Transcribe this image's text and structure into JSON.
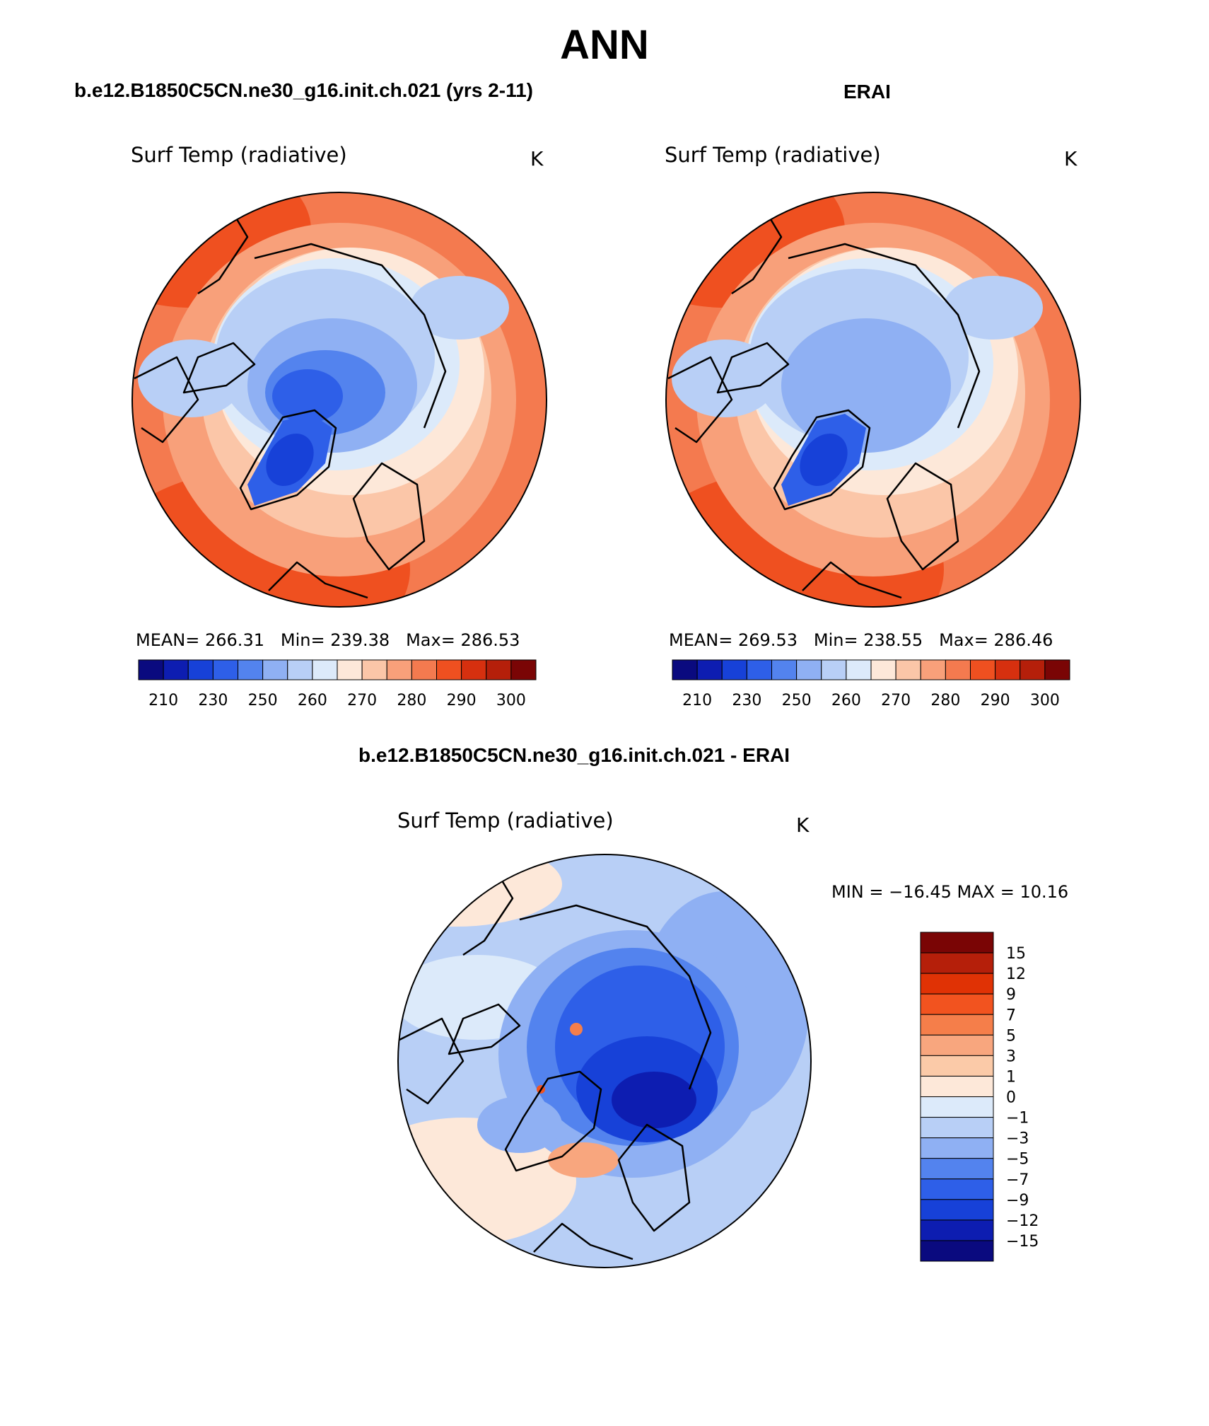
{
  "title": "ANN",
  "panels": [
    {
      "case_title": "b.e12.B1850C5CN.ne30_g16.init.ch.021 (yrs 2-11)",
      "variable": "Surf Temp (radiative)",
      "units": "K",
      "stats": {
        "mean_label": "MEAN=",
        "mean": "266.31",
        "min_label": "Min=",
        "min": "239.38",
        "max_label": "Max=",
        "max": "286.53"
      }
    },
    {
      "case_title": "ERAI",
      "variable": "Surf Temp (radiative)",
      "units": "K",
      "stats": {
        "mean_label": "MEAN=",
        "mean": "269.53",
        "min_label": "Min=",
        "min": "238.55",
        "max_label": "Max=",
        "max": "286.46"
      }
    }
  ],
  "diff_panel": {
    "case_title": "b.e12.B1850C5CN.ne30_g16.init.ch.021 - ERAI",
    "variable": "Surf Temp (radiative)",
    "units": "K",
    "minmax_text": "MIN = −16.45 MAX =   10.16"
  },
  "chart_data": [
    {
      "type": "heatmap",
      "projection": "north-polar-stereographic",
      "title": "b.e12.B1850C5CN.ne30_g16.init.ch.021 (yrs 2-11)",
      "variable": "Surf Temp (radiative)",
      "units": "K",
      "mean": 266.31,
      "min": 239.38,
      "max": 286.53,
      "colorbar_levels": [
        210,
        220,
        230,
        240,
        250,
        255,
        260,
        265,
        270,
        275,
        280,
        285,
        290,
        295,
        300
      ],
      "colorbar_tick_labels": [
        "210",
        "230",
        "250",
        "260",
        "270",
        "280",
        "290",
        "300"
      ],
      "legend": "bottom"
    },
    {
      "type": "heatmap",
      "projection": "north-polar-stereographic",
      "title": "ERAI",
      "variable": "Surf Temp (radiative)",
      "units": "K",
      "mean": 269.53,
      "min": 238.55,
      "max": 286.46,
      "colorbar_levels": [
        210,
        220,
        230,
        240,
        250,
        255,
        260,
        265,
        270,
        275,
        280,
        285,
        290,
        295,
        300
      ],
      "colorbar_tick_labels": [
        "210",
        "230",
        "250",
        "260",
        "270",
        "280",
        "290",
        "300"
      ],
      "legend": "bottom"
    },
    {
      "type": "heatmap",
      "projection": "north-polar-stereographic",
      "title": "b.e12.B1850C5CN.ne30_g16.init.ch.021 - ERAI",
      "variable": "Surf Temp (radiative)",
      "units": "K",
      "min": -16.45,
      "max": 10.16,
      "colorbar_levels": [
        15,
        12,
        9,
        7,
        5,
        3,
        1,
        0,
        -1,
        -3,
        -5,
        -7,
        -9,
        -12,
        -15
      ],
      "colorbar_tick_labels": [
        "15",
        "12",
        "9",
        "7",
        "5",
        "3",
        "1",
        "0",
        "−1",
        "−3",
        "−5",
        "−7",
        "−9",
        "−12",
        "−15"
      ],
      "legend": "right"
    }
  ],
  "colors": {
    "abs_palette": [
      "#0a0a7f",
      "#0d1db1",
      "#1741d8",
      "#2e5fe8",
      "#5383ee",
      "#8fb0f3",
      "#b8cff6",
      "#dceafa",
      "#fde8d9",
      "#fbc6a8",
      "#f8a07a",
      "#f47a4f",
      "#ef5020",
      "#d6300f",
      "#b51f0a",
      "#7a0505"
    ],
    "diff_palette_top_to_bottom": [
      "#7a0505",
      "#b51f0a",
      "#e03205",
      "#f2531f",
      "#f57e4a",
      "#f8a67e",
      "#fbcaa8",
      "#fde8d9",
      "#dceafa",
      "#b8cff6",
      "#8fb0f3",
      "#5383ee",
      "#2e5fe8",
      "#1741d8",
      "#0d1db1",
      "#0a0a7f"
    ]
  }
}
